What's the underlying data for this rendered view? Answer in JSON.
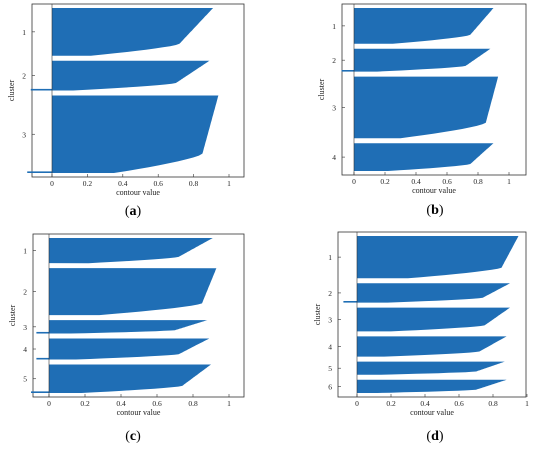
{
  "accent_color": "#1f6eb5",
  "chart_data": [
    {
      "type": "bar",
      "caption": "a",
      "title": "",
      "xlabel": "contour value",
      "ylabel": "cluster",
      "xlim": [
        -0.15,
        1.0
      ],
      "xticks": [
        0,
        0.2,
        0.4,
        0.6,
        0.8,
        1
      ],
      "xtick_labels": [
        "0",
        "0.2",
        "0.4",
        "0.6",
        "0.8",
        "1"
      ],
      "clusters": [
        {
          "label": "1",
          "size": 48,
          "start": 0.91,
          "end": 0.22,
          "knee": 0.72,
          "neg": 0.0
        },
        {
          "label": "2",
          "size": 30,
          "start": 0.89,
          "end": 0.12,
          "knee": 0.7,
          "neg": -0.12
        },
        {
          "label": "3",
          "size": 78,
          "start": 0.94,
          "end": 0.35,
          "knee": 0.85,
          "neg": -0.14
        }
      ]
    },
    {
      "type": "bar",
      "caption": "b",
      "title": "",
      "xlabel": "contour value",
      "ylabel": "cluster",
      "xlim": [
        -0.08,
        1.0
      ],
      "xticks": [
        0,
        0.2,
        0.4,
        0.6,
        0.8,
        1
      ],
      "xtick_labels": [
        "0",
        "0.2",
        "0.4",
        "0.6",
        "0.8",
        "1"
      ],
      "clusters": [
        {
          "label": "1",
          "size": 36,
          "start": 0.9,
          "end": 0.25,
          "knee": 0.75,
          "neg": 0.0
        },
        {
          "label": "2",
          "size": 23,
          "start": 0.88,
          "end": 0.15,
          "knee": 0.72,
          "neg": -0.08
        },
        {
          "label": "3",
          "size": 62,
          "start": 0.93,
          "end": 0.3,
          "knee": 0.85,
          "neg": 0.0
        },
        {
          "label": "4",
          "size": 28,
          "start": 0.9,
          "end": 0.22,
          "knee": 0.75,
          "neg": 0.0
        }
      ]
    },
    {
      "type": "bar",
      "caption": "c",
      "title": "",
      "xlabel": "contour value",
      "ylabel": "cluster",
      "xlim": [
        -0.08,
        1.0
      ],
      "xticks": [
        0,
        0.2,
        0.4,
        0.6,
        0.8,
        1
      ],
      "xtick_labels": [
        "0",
        "0.2",
        "0.4",
        "0.6",
        "0.8",
        "1"
      ],
      "clusters": [
        {
          "label": "1",
          "size": 30,
          "start": 0.91,
          "end": 0.22,
          "knee": 0.72,
          "neg": 0.0
        },
        {
          "label": "2",
          "size": 56,
          "start": 0.93,
          "end": 0.28,
          "knee": 0.85,
          "neg": 0.0
        },
        {
          "label": "3",
          "size": 16,
          "start": 0.88,
          "end": 0.12,
          "knee": 0.7,
          "neg": -0.07
        },
        {
          "label": "4",
          "size": 25,
          "start": 0.89,
          "end": 0.15,
          "knee": 0.72,
          "neg": -0.07
        },
        {
          "label": "5",
          "size": 34,
          "start": 0.9,
          "end": 0.18,
          "knee": 0.74,
          "neg": -0.1
        }
      ]
    },
    {
      "type": "bar",
      "caption": "d",
      "title": "",
      "xlabel": "contour value",
      "ylabel": "cluster",
      "xlim": [
        -0.08,
        1.0
      ],
      "xticks": [
        0,
        0.2,
        0.4,
        0.6,
        0.8,
        1
      ],
      "xtick_labels": [
        "0",
        "0.2",
        "0.4",
        "0.6",
        "0.8",
        "1"
      ],
      "clusters": [
        {
          "label": "1",
          "size": 48,
          "start": 0.95,
          "end": 0.3,
          "knee": 0.85,
          "neg": 0.0
        },
        {
          "label": "2",
          "size": 22,
          "start": 0.9,
          "end": 0.18,
          "knee": 0.74,
          "neg": -0.08
        },
        {
          "label": "3",
          "size": 27,
          "start": 0.9,
          "end": 0.2,
          "knee": 0.75,
          "neg": 0.0
        },
        {
          "label": "4",
          "size": 23,
          "start": 0.88,
          "end": 0.16,
          "knee": 0.72,
          "neg": 0.0
        },
        {
          "label": "5",
          "size": 15,
          "start": 0.87,
          "end": 0.12,
          "knee": 0.7,
          "neg": 0.0
        },
        {
          "label": "6",
          "size": 15,
          "start": 0.88,
          "end": 0.12,
          "knee": 0.7,
          "neg": 0.0
        }
      ]
    }
  ]
}
